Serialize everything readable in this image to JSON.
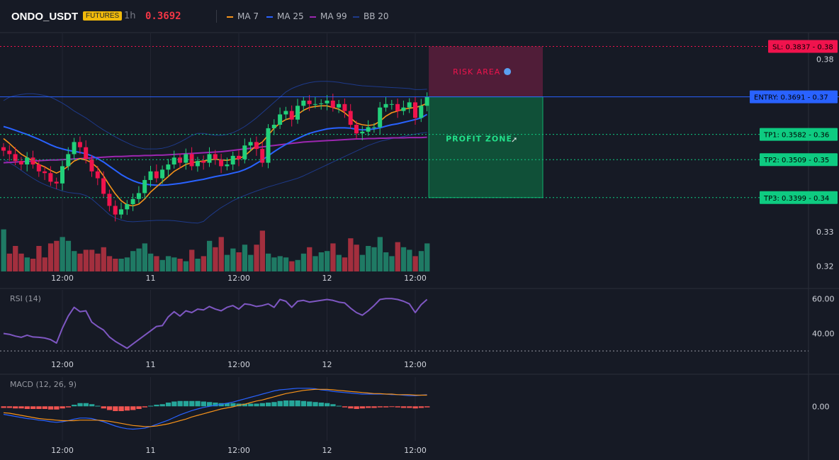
{
  "header": {
    "symbol": "ONDO_USDT",
    "badge": "FUTURES",
    "timeframe": "1h",
    "last_price": "0.3692",
    "legend": [
      {
        "label": "MA 7",
        "color": "#f7931a"
      },
      {
        "label": "MA 25",
        "color": "#2962ff"
      },
      {
        "label": "MA 99",
        "color": "#9c27b0"
      },
      {
        "label": "BB 20",
        "color": "#1e3a8a"
      }
    ]
  },
  "colors": {
    "up": "#22d07a",
    "down": "#f0134d",
    "vol_up": "#1f7a64",
    "vol_down": "#a32f3e",
    "grid": "#232632",
    "bg": "#161a25",
    "sl": "#f0134d",
    "entry": "#2962ff",
    "tp": "#0ecb81"
  },
  "chart_data": [
    {
      "type": "candlestick",
      "title": "ONDO_USDT",
      "x_tick_labels": [
        "12:00",
        "11",
        "12:00",
        "12",
        "12:00"
      ],
      "y_ticks": [
        0.38,
        0.36,
        0.35,
        0.34,
        0.33,
        0.32
      ],
      "ylim": [
        0.3185,
        0.3875
      ],
      "levels": [
        {
          "label": "SL",
          "text": "SL: 0.3837",
          "value": 0.3837,
          "axis": "0.38"
        },
        {
          "label": "ENTRY",
          "text": "ENTRY: 0.3691",
          "value": 0.3691,
          "axis": "0.37"
        },
        {
          "label": "TP1",
          "text": "TP1: 0.3582",
          "value": 0.3582,
          "axis": "0.36"
        },
        {
          "label": "TP2",
          "text": "TP2: 0.3509",
          "value": 0.3509,
          "axis": "0.35"
        },
        {
          "label": "TP3",
          "text": "TP3: 0.3399",
          "value": 0.3399,
          "axis": "0.34"
        }
      ],
      "zones": [
        {
          "label": "RISK AREA",
          "icon": "shield-icon",
          "from": 0.3691,
          "to": 0.3837
        },
        {
          "label": "PROFIT ZONE",
          "icon": "rocket-icon",
          "from": 0.3399,
          "to": 0.3691
        }
      ],
      "close": [
        0.3535,
        0.3525,
        0.3505,
        0.3495,
        0.3515,
        0.3495,
        0.3475,
        0.347,
        0.3445,
        0.344,
        0.349,
        0.3525,
        0.356,
        0.3545,
        0.351,
        0.3475,
        0.3455,
        0.341,
        0.3375,
        0.335,
        0.3365,
        0.338,
        0.3395,
        0.3412,
        0.345,
        0.3475,
        0.3455,
        0.348,
        0.3495,
        0.3515,
        0.35,
        0.3525,
        0.349,
        0.3505,
        0.35,
        0.3525,
        0.351,
        0.349,
        0.3495,
        0.352,
        0.351,
        0.355,
        0.356,
        0.354,
        0.35,
        0.36,
        0.361,
        0.364,
        0.365,
        0.3625,
        0.3665,
        0.368,
        0.367,
        0.367,
        0.3672,
        0.368,
        0.366,
        0.367,
        0.365,
        0.361,
        0.3585,
        0.359,
        0.3603,
        0.3603,
        0.366,
        0.367,
        0.367,
        0.365,
        0.366,
        0.3675,
        0.363,
        0.3665,
        0.3692
      ],
      "volume": [
        33,
        14,
        20,
        14,
        11,
        10,
        20,
        11,
        22,
        24,
        27,
        24,
        16,
        14,
        17,
        17,
        14,
        19,
        12,
        10,
        10,
        11,
        16,
        18,
        22,
        14,
        12,
        9,
        12,
        11,
        10,
        8,
        17,
        10,
        12,
        24,
        19,
        27,
        13,
        18,
        15,
        21,
        13,
        21,
        32,
        14,
        11,
        12,
        11,
        8,
        9,
        14,
        19,
        12,
        15,
        16,
        22,
        13,
        11,
        26,
        21,
        13,
        20,
        19,
        27,
        15,
        12,
        23,
        19,
        17,
        12,
        16,
        22
      ],
      "ma7": [
        0.357,
        0.3556,
        0.354,
        0.3525,
        0.3515,
        0.3505,
        0.3495,
        0.3488,
        0.3478,
        0.347,
        0.3478,
        0.349,
        0.3505,
        0.3512,
        0.3508,
        0.35,
        0.3485,
        0.3462,
        0.3435,
        0.341,
        0.339,
        0.3378,
        0.3375,
        0.338,
        0.3395,
        0.3415,
        0.343,
        0.3445,
        0.346,
        0.3475,
        0.3485,
        0.3495,
        0.35,
        0.3503,
        0.3505,
        0.3508,
        0.351,
        0.3508,
        0.3507,
        0.351,
        0.3512,
        0.352,
        0.3535,
        0.355,
        0.356,
        0.358,
        0.36,
        0.3615,
        0.3625,
        0.363,
        0.364,
        0.3652,
        0.366,
        0.3663,
        0.3665,
        0.3665,
        0.366,
        0.3655,
        0.3645,
        0.363,
        0.3615,
        0.361,
        0.3608,
        0.361,
        0.362,
        0.3635,
        0.3645,
        0.365,
        0.3655,
        0.3658,
        0.366,
        0.3665,
        0.3672
      ],
      "ma25": [
        0.3605,
        0.36,
        0.3594,
        0.3588,
        0.3582,
        0.3575,
        0.3568,
        0.356,
        0.3552,
        0.3545,
        0.354,
        0.3536,
        0.3533,
        0.353,
        0.3526,
        0.352,
        0.3512,
        0.3502,
        0.349,
        0.3478,
        0.3466,
        0.3456,
        0.3448,
        0.3442,
        0.3438,
        0.3436,
        0.3435,
        0.3435,
        0.3436,
        0.3438,
        0.344,
        0.3443,
        0.3446,
        0.3449,
        0.3452,
        0.3456,
        0.346,
        0.3463,
        0.3466,
        0.347,
        0.3474,
        0.348,
        0.3488,
        0.3498,
        0.3508,
        0.352,
        0.3532,
        0.3543,
        0.3553,
        0.3562,
        0.357,
        0.3578,
        0.3585,
        0.359,
        0.3594,
        0.3598,
        0.36,
        0.3601,
        0.3601,
        0.36,
        0.3597,
        0.3595,
        0.3596,
        0.3598,
        0.3601,
        0.3606,
        0.361,
        0.3613,
        0.3617,
        0.3621,
        0.3625,
        0.363,
        0.364
      ],
      "ma99": [
        0.35,
        0.3501,
        0.3502,
        0.3503,
        0.3504,
        0.3505,
        0.3506,
        0.3507,
        0.3508,
        0.3508,
        0.3509,
        0.351,
        0.3511,
        0.3512,
        0.3513,
        0.3514,
        0.3515,
        0.3516,
        0.3517,
        0.3518,
        0.3518,
        0.3519,
        0.352,
        0.352,
        0.3521,
        0.3521,
        0.3522,
        0.3522,
        0.3523,
        0.3524,
        0.3525,
        0.3526,
        0.3527,
        0.3528,
        0.3529,
        0.353,
        0.3531,
        0.3532,
        0.3534,
        0.3536,
        0.3538,
        0.354,
        0.3542,
        0.3544,
        0.3546,
        0.3548,
        0.355,
        0.3552,
        0.3554,
        0.3556,
        0.3558,
        0.356,
        0.3561,
        0.3562,
        0.3563,
        0.3564,
        0.3565,
        0.3566,
        0.3567,
        0.3568,
        0.3569,
        0.3569,
        0.357,
        0.357,
        0.3571,
        0.3571,
        0.3572,
        0.3572,
        0.3572,
        0.3573,
        0.3573,
        0.3573,
        0.3574
      ],
      "bb_upper": [
        0.368,
        0.369,
        0.3695,
        0.3698,
        0.37,
        0.37,
        0.3698,
        0.3695,
        0.369,
        0.3682,
        0.3673,
        0.3662,
        0.365,
        0.364,
        0.363,
        0.3618,
        0.3606,
        0.3595,
        0.3585,
        0.3575,
        0.3566,
        0.3558,
        0.355,
        0.3544,
        0.354,
        0.354,
        0.354,
        0.3542,
        0.3546,
        0.3552,
        0.356,
        0.3569,
        0.3579,
        0.3585,
        0.3585,
        0.3582,
        0.358,
        0.358,
        0.3582,
        0.3587,
        0.3595,
        0.3605,
        0.3617,
        0.363,
        0.3645,
        0.366,
        0.3675,
        0.369,
        0.3705,
        0.3715,
        0.3722,
        0.3728,
        0.3732,
        0.3735,
        0.3736,
        0.3736,
        0.3735,
        0.3733,
        0.373,
        0.3728,
        0.3725,
        0.3723,
        0.3722,
        0.3721,
        0.372,
        0.3719,
        0.3718,
        0.3717,
        0.3716,
        0.3715,
        0.3712,
        0.3712,
        0.3713
      ],
      "bb_lower": [
        0.351,
        0.35,
        0.349,
        0.3478,
        0.3466,
        0.3455,
        0.3445,
        0.3437,
        0.343,
        0.3424,
        0.3418,
        0.3414,
        0.3412,
        0.341,
        0.3405,
        0.3395,
        0.338,
        0.3365,
        0.335,
        0.334,
        0.3334,
        0.333,
        0.3329,
        0.333,
        0.3331,
        0.3332,
        0.3333,
        0.3333,
        0.3333,
        0.3332,
        0.333,
        0.3328,
        0.3326,
        0.3325,
        0.333,
        0.3345,
        0.3358,
        0.337,
        0.338,
        0.339,
        0.3398,
        0.3405,
        0.3412,
        0.3418,
        0.3424,
        0.343,
        0.3435,
        0.344,
        0.3445,
        0.345,
        0.3455,
        0.3462,
        0.347,
        0.3478,
        0.3486,
        0.3494,
        0.3502,
        0.351,
        0.3518,
        0.3526,
        0.3534,
        0.3542,
        0.355,
        0.3556,
        0.3562,
        0.3566,
        0.357,
        0.3573,
        0.3576,
        0.358,
        0.3583,
        0.3586,
        0.3588
      ]
    },
    {
      "type": "line",
      "title": "RSI (14)",
      "y_ticks": [
        60,
        40
      ],
      "ylim": [
        28,
        65
      ],
      "reference_line": 30,
      "values": [
        40.0,
        39.5,
        38.5,
        37.8,
        39.0,
        38.0,
        37.8,
        37.4,
        36.5,
        34.5,
        43.0,
        50.0,
        55.0,
        52.5,
        53.0,
        46.5,
        44.0,
        42.0,
        38.0,
        35.5,
        33.5,
        31.5,
        34.0,
        36.5,
        39.0,
        41.5,
        44.0,
        44.5,
        49.5,
        52.5,
        50.0,
        53.0,
        52.0,
        54.0,
        53.5,
        55.5,
        54.0,
        53.0,
        55.0,
        56.0,
        54.0,
        57.0,
        56.5,
        55.5,
        56.0,
        57.0,
        55.0,
        59.5,
        58.5,
        55.0,
        58.5,
        59.0,
        58.0,
        58.5,
        59.0,
        59.5,
        59.0,
        58.0,
        57.5,
        54.5,
        52.0,
        50.5,
        53.0,
        56.0,
        59.5,
        60.0,
        60.0,
        59.5,
        58.5,
        57.0,
        52.0,
        56.5,
        59.5
      ]
    },
    {
      "type": "bar",
      "title": "MACD (12, 26, 9)",
      "y_ticks": [
        0.0
      ],
      "y_tick_labels": [
        "0.00"
      ],
      "ylim": [
        -0.0065,
        0.0055
      ],
      "histogram": [
        -0.0003,
        -0.0003,
        -0.0004,
        -0.0004,
        -0.0005,
        -0.0005,
        -0.0005,
        -0.0005,
        -0.0006,
        -0.0006,
        -0.0004,
        -0.0002,
        0.0003,
        0.0006,
        0.0006,
        0.0004,
        0.0001,
        -0.0004,
        -0.0007,
        -0.0009,
        -0.0009,
        -0.0008,
        -0.0007,
        -0.0005,
        -0.0002,
        0.0001,
        0.0003,
        0.0004,
        0.0007,
        0.0009,
        0.001,
        0.001,
        0.001,
        0.001,
        0.0009,
        0.0008,
        0.0007,
        0.0006,
        0.0006,
        0.0006,
        0.0005,
        0.0005,
        0.0005,
        0.0005,
        0.0006,
        0.0007,
        0.0008,
        0.001,
        0.0011,
        0.0011,
        0.0011,
        0.001,
        0.0009,
        0.0008,
        0.0007,
        0.0006,
        0.0004,
        0.0001,
        -0.0002,
        -0.0004,
        -0.0005,
        -0.0004,
        -0.0003,
        -0.0003,
        -0.0002,
        -0.0002,
        -0.0001,
        -0.0002,
        -0.0003,
        -0.0003,
        -0.0004,
        -0.0003,
        -0.0002
      ],
      "macd": [
        -0.0015,
        -0.0017,
        -0.0019,
        -0.0021,
        -0.0023,
        -0.0024,
        -0.0026,
        -0.0027,
        -0.0029,
        -0.003,
        -0.0029,
        -0.0027,
        -0.0024,
        -0.0022,
        -0.0022,
        -0.0023,
        -0.0026,
        -0.0029,
        -0.0033,
        -0.0037,
        -0.004,
        -0.0042,
        -0.0043,
        -0.0042,
        -0.0041,
        -0.0038,
        -0.0034,
        -0.003,
        -0.0026,
        -0.0021,
        -0.0016,
        -0.0012,
        -0.0008,
        -0.0005,
        -0.0002,
        0.0,
        0.0002,
        0.0004,
        0.0006,
        0.0008,
        0.0011,
        0.0014,
        0.0017,
        0.002,
        0.0023,
        0.0026,
        0.0029,
        0.0031,
        0.0032,
        0.0033,
        0.0034,
        0.0034,
        0.0034,
        0.0033,
        0.0031,
        0.003,
        0.0028,
        0.0027,
        0.0026,
        0.0025,
        0.0024,
        0.0023,
        0.0023,
        0.0023,
        0.0023,
        0.0023,
        0.0022,
        0.0022,
        0.0021,
        0.002,
        0.002,
        0.0021,
        0.0022
      ],
      "signal": [
        -0.0012,
        -0.0013,
        -0.0015,
        -0.0017,
        -0.0019,
        -0.0021,
        -0.0023,
        -0.0024,
        -0.0025,
        -0.0026,
        -0.0027,
        -0.0027,
        -0.0027,
        -0.0026,
        -0.0026,
        -0.0026,
        -0.0026,
        -0.0027,
        -0.0028,
        -0.003,
        -0.0032,
        -0.0034,
        -0.0036,
        -0.0037,
        -0.0038,
        -0.0038,
        -0.0037,
        -0.0035,
        -0.0033,
        -0.003,
        -0.0027,
        -0.0024,
        -0.002,
        -0.0017,
        -0.0014,
        -0.0011,
        -0.0008,
        -0.0005,
        -0.0003,
        -0.0001,
        0.0002,
        0.0004,
        0.0007,
        0.001,
        0.0012,
        0.0015,
        0.0018,
        0.0021,
        0.0024,
        0.0026,
        0.0028,
        0.003,
        0.0031,
        0.0032,
        0.0032,
        0.0032,
        0.0031,
        0.003,
        0.0029,
        0.0028,
        0.0027,
        0.0026,
        0.0025,
        0.0024,
        0.0024,
        0.0023,
        0.0023,
        0.0022,
        0.0022,
        0.0022,
        0.0021,
        0.0021,
        0.0021
      ]
    }
  ]
}
